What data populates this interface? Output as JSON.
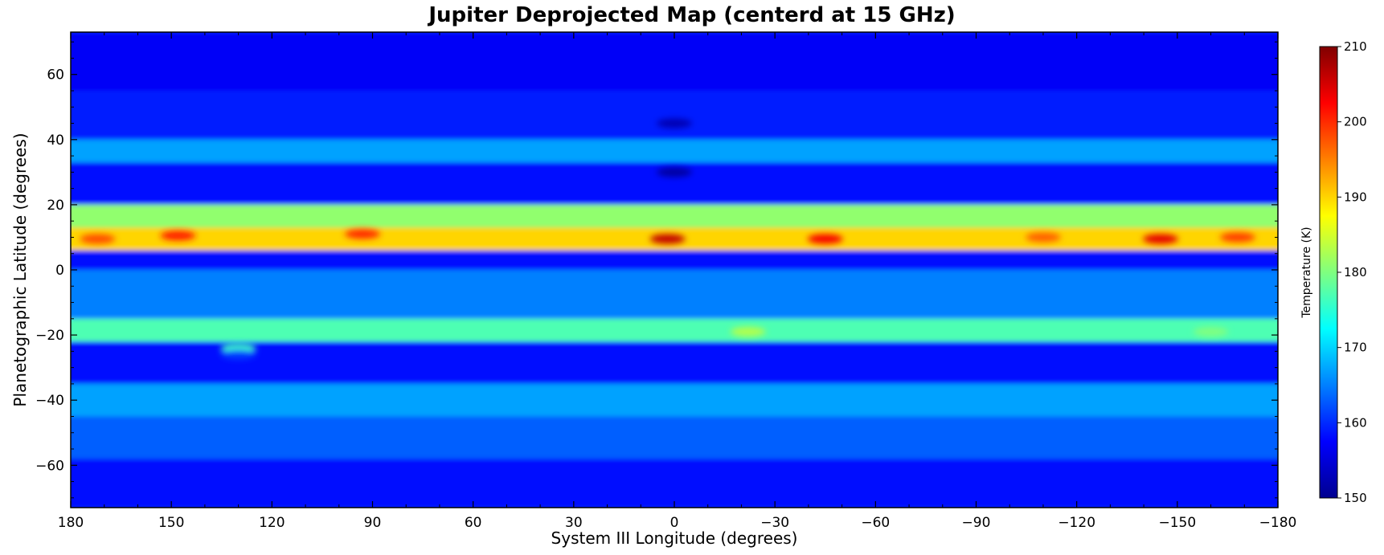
{
  "chart_data": {
    "type": "heatmap",
    "title": "Jupiter Deprojected Map (centerd at 15 GHz)",
    "xlabel": "System III Longitude (degrees)",
    "ylabel": "Planetographic Latitude (degrees)",
    "xlim": [
      180,
      -180
    ],
    "ylim": [
      -73,
      73
    ],
    "x_ticks": [
      180,
      150,
      120,
      90,
      60,
      30,
      0,
      -30,
      -60,
      -90,
      -120,
      -150,
      -180
    ],
    "x_tick_labels": [
      "180",
      "150",
      "120",
      "90",
      "60",
      "30",
      "0",
      "−30",
      "−60",
      "−90",
      "−120",
      "−150",
      "−180"
    ],
    "y_ticks": [
      60,
      40,
      20,
      0,
      -20,
      -40,
      -60
    ],
    "y_tick_labels": [
      "60",
      "40",
      "20",
      "0",
      "−20",
      "−40",
      "−60"
    ],
    "colorbar": {
      "label": "Temperature (K)",
      "range": [
        150,
        210
      ],
      "ticks": [
        210,
        200,
        190,
        180,
        170,
        160,
        150
      ],
      "colormap": "jet"
    },
    "grid": false,
    "latitude_bands": [
      {
        "lat_min": 55,
        "lat_max": 73,
        "temp": 157
      },
      {
        "lat_min": 40,
        "lat_max": 55,
        "temp": 159
      },
      {
        "lat_min": 33,
        "lat_max": 40,
        "temp": 167
      },
      {
        "lat_min": 20,
        "lat_max": 33,
        "temp": 158
      },
      {
        "lat_min": 13,
        "lat_max": 20,
        "temp": 181
      },
      {
        "lat_min": 6,
        "lat_max": 13,
        "temp": 190
      },
      {
        "lat_min": 0,
        "lat_max": 6,
        "temp": 158
      },
      {
        "lat_min": -15,
        "lat_max": 0,
        "temp": 165
      },
      {
        "lat_min": -22,
        "lat_max": -15,
        "temp": 177
      },
      {
        "lat_min": -35,
        "lat_max": -22,
        "temp": 158
      },
      {
        "lat_min": -45,
        "lat_max": -35,
        "temp": 167
      },
      {
        "lat_min": -58,
        "lat_max": -45,
        "temp": 163
      },
      {
        "lat_min": -73,
        "lat_max": -58,
        "temp": 158
      }
    ],
    "features": [
      {
        "lon": 2,
        "lat": 9.5,
        "temp": 206
      },
      {
        "lon": -45,
        "lat": 9.5,
        "temp": 203
      },
      {
        "lon": -145,
        "lat": 9.5,
        "temp": 204
      },
      {
        "lon": 148,
        "lat": 10.5,
        "temp": 201
      },
      {
        "lon": 93,
        "lat": 11,
        "temp": 200
      },
      {
        "lon": 172,
        "lat": 9.5,
        "temp": 198
      },
      {
        "lon": -110,
        "lat": 10,
        "temp": 197
      },
      {
        "lon": -168,
        "lat": 10,
        "temp": 199
      },
      {
        "lon": -22,
        "lat": -19,
        "temp": 183
      },
      {
        "lon": -160,
        "lat": -19,
        "temp": 180
      },
      {
        "lon": 0,
        "lat": 30,
        "temp": 152
      },
      {
        "lon": 0,
        "lat": 45,
        "temp": 153
      },
      {
        "lon": 130,
        "lat": -24,
        "temp": 176
      },
      {
        "lon": 130,
        "lat": -26,
        "temp": 161
      }
    ]
  }
}
